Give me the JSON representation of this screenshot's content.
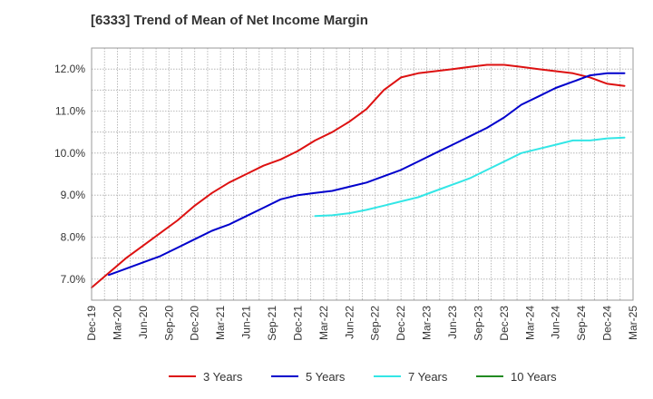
{
  "chart_data": {
    "type": "line",
    "title": "[6333]  Trend of Mean of Net Income Margin",
    "xlabel": "",
    "ylabel": "",
    "x_ticks": [
      "Dec-19",
      "Mar-20",
      "Jun-20",
      "Sep-20",
      "Dec-20",
      "Mar-21",
      "Jun-21",
      "Sep-21",
      "Dec-21",
      "Mar-22",
      "Jun-22",
      "Sep-22",
      "Dec-22",
      "Mar-23",
      "Jun-23",
      "Sep-23",
      "Dec-23",
      "Mar-24",
      "Jun-24",
      "Sep-24",
      "Dec-24",
      "Mar-25"
    ],
    "y_ticks": [
      "7.0%",
      "8.0%",
      "9.0%",
      "10.0%",
      "11.0%",
      "12.0%"
    ],
    "y_tick_values": [
      7.0,
      8.0,
      9.0,
      10.0,
      11.0,
      12.0
    ],
    "ylim": [
      6.5,
      12.5
    ],
    "grid": true,
    "legend_position": "bottom",
    "series": [
      {
        "name": "3 Years",
        "color": "#dd1111",
        "values": [
          6.8,
          7.15,
          7.5,
          7.8,
          8.1,
          8.4,
          8.75,
          9.05,
          9.3,
          9.5,
          9.7,
          9.85,
          10.05,
          10.3,
          10.5,
          10.75,
          11.05,
          11.5,
          11.8,
          11.9,
          11.95,
          12.0,
          12.05,
          12.1,
          12.1,
          12.05,
          12.0,
          11.95,
          11.9,
          11.8,
          11.65,
          11.6
        ]
      },
      {
        "name": "5 Years",
        "color": "#0000cc",
        "values": [
          null,
          7.1,
          7.25,
          7.4,
          7.55,
          7.75,
          7.95,
          8.15,
          8.3,
          8.5,
          8.7,
          8.9,
          9.0,
          9.05,
          9.1,
          9.2,
          9.3,
          9.45,
          9.6,
          9.8,
          10.0,
          10.2,
          10.4,
          10.6,
          10.85,
          11.15,
          11.35,
          11.55,
          11.7,
          11.85,
          11.9,
          11.9
        ]
      },
      {
        "name": "7 Years",
        "color": "#33e6e6",
        "values": [
          null,
          null,
          null,
          null,
          null,
          null,
          null,
          null,
          null,
          null,
          null,
          null,
          null,
          8.5,
          8.52,
          8.57,
          8.65,
          8.75,
          8.85,
          8.95,
          9.1,
          9.25,
          9.4,
          9.6,
          9.8,
          10.0,
          10.1,
          10.2,
          10.3,
          10.3,
          10.35,
          10.37
        ]
      },
      {
        "name": "10 Years",
        "color": "#228b22",
        "values": []
      }
    ]
  }
}
